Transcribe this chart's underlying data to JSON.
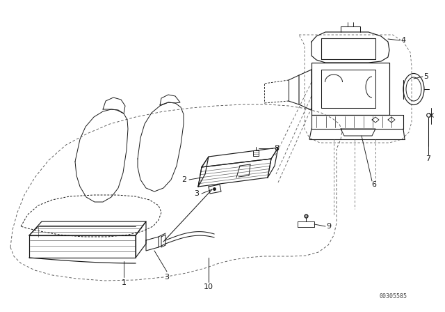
{
  "background_color": "#ffffff",
  "lc": "#1a1a1a",
  "watermark": "00305585",
  "fig_w": 6.4,
  "fig_h": 4.48,
  "dpi": 100
}
